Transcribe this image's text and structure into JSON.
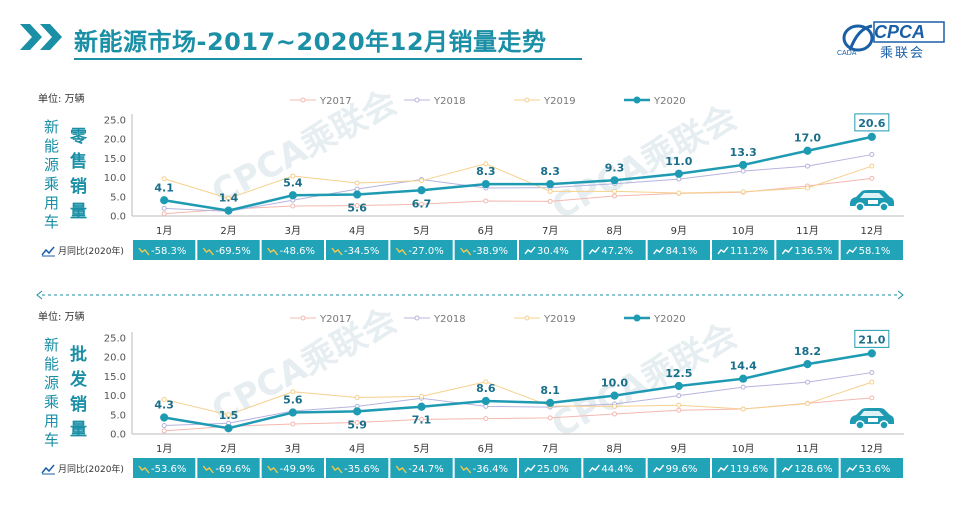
{
  "header": {
    "title": "新能源市场-2017~2020年12月销量走势",
    "logo_text": "CPCA",
    "logo_cn": "乘联会",
    "logo_small": "CADA"
  },
  "colors": {
    "Y2017": "#f4b8b0",
    "Y2018": "#b7b4de",
    "Y2019": "#f6d08c",
    "Y2020": "#1e9bb2",
    "yoy_bg": "#21a3b8",
    "accent": "#1a8fa6"
  },
  "watermark": "CPCA乘联会",
  "footer_note": "",
  "chart_data": [
    {
      "type": "line",
      "unit_label": "单位: 万辆",
      "side_label": [
        "新",
        "能",
        "源",
        "乘",
        "用",
        "车"
      ],
      "sub_label": [
        "零",
        "售",
        "销",
        "量"
      ],
      "categories": [
        "1月",
        "2月",
        "3月",
        "4月",
        "5月",
        "6月",
        "7月",
        "8月",
        "9月",
        "10月",
        "11月",
        "12月"
      ],
      "ylim": [
        0,
        25
      ],
      "yticks": [
        "0.0",
        "5.0",
        "10.0",
        "15.0",
        "20.0",
        "25.0"
      ],
      "legend": [
        "Y2017",
        "Y2018",
        "Y2019",
        "Y2020"
      ],
      "legend_position": "top",
      "series": [
        {
          "name": "Y2017",
          "values": [
            0.6,
            1.8,
            2.6,
            2.7,
            3.1,
            3.9,
            3.8,
            5.2,
            5.9,
            6.2,
            7.8,
            9.8
          ]
        },
        {
          "name": "Y2018",
          "values": [
            2.0,
            1.2,
            4.1,
            7.0,
            9.5,
            7.3,
            7.4,
            8.4,
            9.6,
            11.7,
            13.0,
            16.0
          ]
        },
        {
          "name": "Y2019",
          "values": [
            9.7,
            4.6,
            10.4,
            8.6,
            9.2,
            13.6,
            6.4,
            6.4,
            6.0,
            6.3,
            7.3,
            13.0
          ]
        },
        {
          "name": "Y2020",
          "values": [
            4.1,
            1.4,
            5.4,
            5.6,
            6.7,
            8.3,
            8.3,
            9.3,
            11.0,
            13.3,
            17.0,
            20.6
          ]
        }
      ],
      "data_labels": [
        "4.1",
        "1.4",
        "5.4",
        "5.6",
        "6.7",
        "8.3",
        "8.3",
        "9.3",
        "11.0",
        "13.3",
        "17.0",
        "20.6"
      ],
      "yoy_title": "月同比(2020年)",
      "yoy": [
        "-58.3%",
        "-69.5%",
        "-48.6%",
        "-34.5%",
        "-27.0%",
        "-38.9%",
        "30.4%",
        "47.2%",
        "84.1%",
        "111.2%",
        "136.5%",
        "58.1%"
      ]
    },
    {
      "type": "line",
      "unit_label": "单位: 万辆",
      "side_label": [
        "新",
        "能",
        "源",
        "乘",
        "用",
        "车"
      ],
      "sub_label": [
        "批",
        "发",
        "销",
        "量"
      ],
      "categories": [
        "1月",
        "2月",
        "3月",
        "4月",
        "5月",
        "6月",
        "7月",
        "8月",
        "9月",
        "10月",
        "11月",
        "12月"
      ],
      "ylim": [
        0,
        25
      ],
      "yticks": [
        "0.0",
        "5.0",
        "10.0",
        "15.0",
        "20.0",
        "25.0"
      ],
      "legend": [
        "Y2017",
        "Y2018",
        "Y2019",
        "Y2020"
      ],
      "legend_position": "top",
      "series": [
        {
          "name": "Y2017",
          "values": [
            0.8,
            2.0,
            2.6,
            3.0,
            3.8,
            4.0,
            4.2,
            5.2,
            6.2,
            6.5,
            8.0,
            9.4
          ]
        },
        {
          "name": "Y2018",
          "values": [
            2.2,
            2.8,
            6.0,
            7.2,
            9.3,
            7.2,
            7.0,
            7.8,
            10.0,
            12.2,
            13.5,
            16.0
          ]
        },
        {
          "name": "Y2019",
          "values": [
            9.0,
            5.0,
            11.0,
            9.5,
            9.8,
            13.6,
            7.3,
            7.2,
            7.5,
            6.5,
            7.9,
            13.5
          ]
        },
        {
          "name": "Y2020",
          "values": [
            4.3,
            1.5,
            5.6,
            5.9,
            7.1,
            8.6,
            8.1,
            10.0,
            12.5,
            14.4,
            18.2,
            21.0
          ]
        }
      ],
      "data_labels": [
        "4.3",
        "1.5",
        "5.6",
        "5.9",
        "7.1",
        "8.6",
        "8.1",
        "10.0",
        "12.5",
        "14.4",
        "18.2",
        "21.0"
      ],
      "yoy_title": "月同比(2020年)",
      "yoy": [
        "-53.6%",
        "-69.6%",
        "-49.9%",
        "-35.6%",
        "-24.7%",
        "-36.4%",
        "25.0%",
        "44.4%",
        "99.6%",
        "119.6%",
        "128.6%",
        "53.6%"
      ]
    }
  ]
}
